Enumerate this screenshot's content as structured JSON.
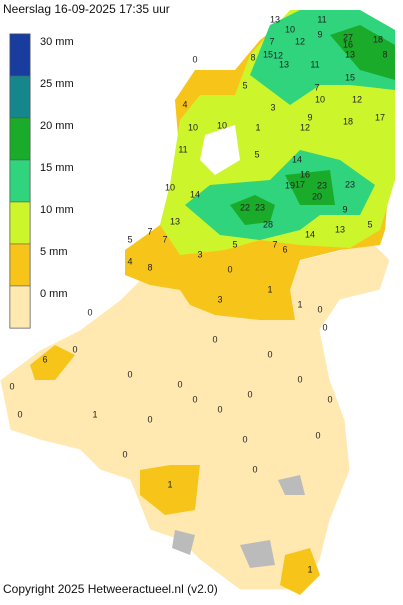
{
  "title": "Neerslag 16-09-2025  17:35 uur",
  "legend": [
    {
      "label": "30 mm",
      "color": "#183d9e"
    },
    {
      "label": "25 mm",
      "color": "#14868c"
    },
    {
      "label": "20 mm",
      "color": "#1aab2a"
    },
    {
      "label": "15 mm",
      "color": "#2fd47c"
    },
    {
      "label": "10 mm",
      "color": "#cdf52c"
    },
    {
      "label": "5 mm",
      "color": "#f7c51a"
    },
    {
      "label": "0 mm",
      "color": "#ffe9b0"
    }
  ],
  "stations": [
    13,
    11,
    10,
    9,
    27,
    16,
    18,
    7,
    12,
    8,
    15,
    12,
    13,
    11,
    13,
    8,
    15,
    12,
    7,
    5,
    3,
    9,
    12,
    18,
    17,
    4,
    10,
    11,
    10,
    1,
    5,
    14,
    16,
    17,
    19,
    23,
    23,
    20,
    22,
    23,
    28,
    14,
    10,
    13,
    7,
    7,
    5,
    4,
    8,
    3,
    0,
    3,
    1,
    1,
    5,
    7,
    6,
    14,
    13,
    5,
    9,
    10,
    0,
    6,
    0,
    0,
    1,
    0,
    0,
    0,
    0,
    0,
    0,
    0,
    0,
    0,
    0,
    1,
    0,
    0,
    1,
    0,
    0,
    0,
    0,
    0,
    0
  ],
  "copyright": "Copyright 2025 Hetweeractueel.nl (v2.0)"
}
